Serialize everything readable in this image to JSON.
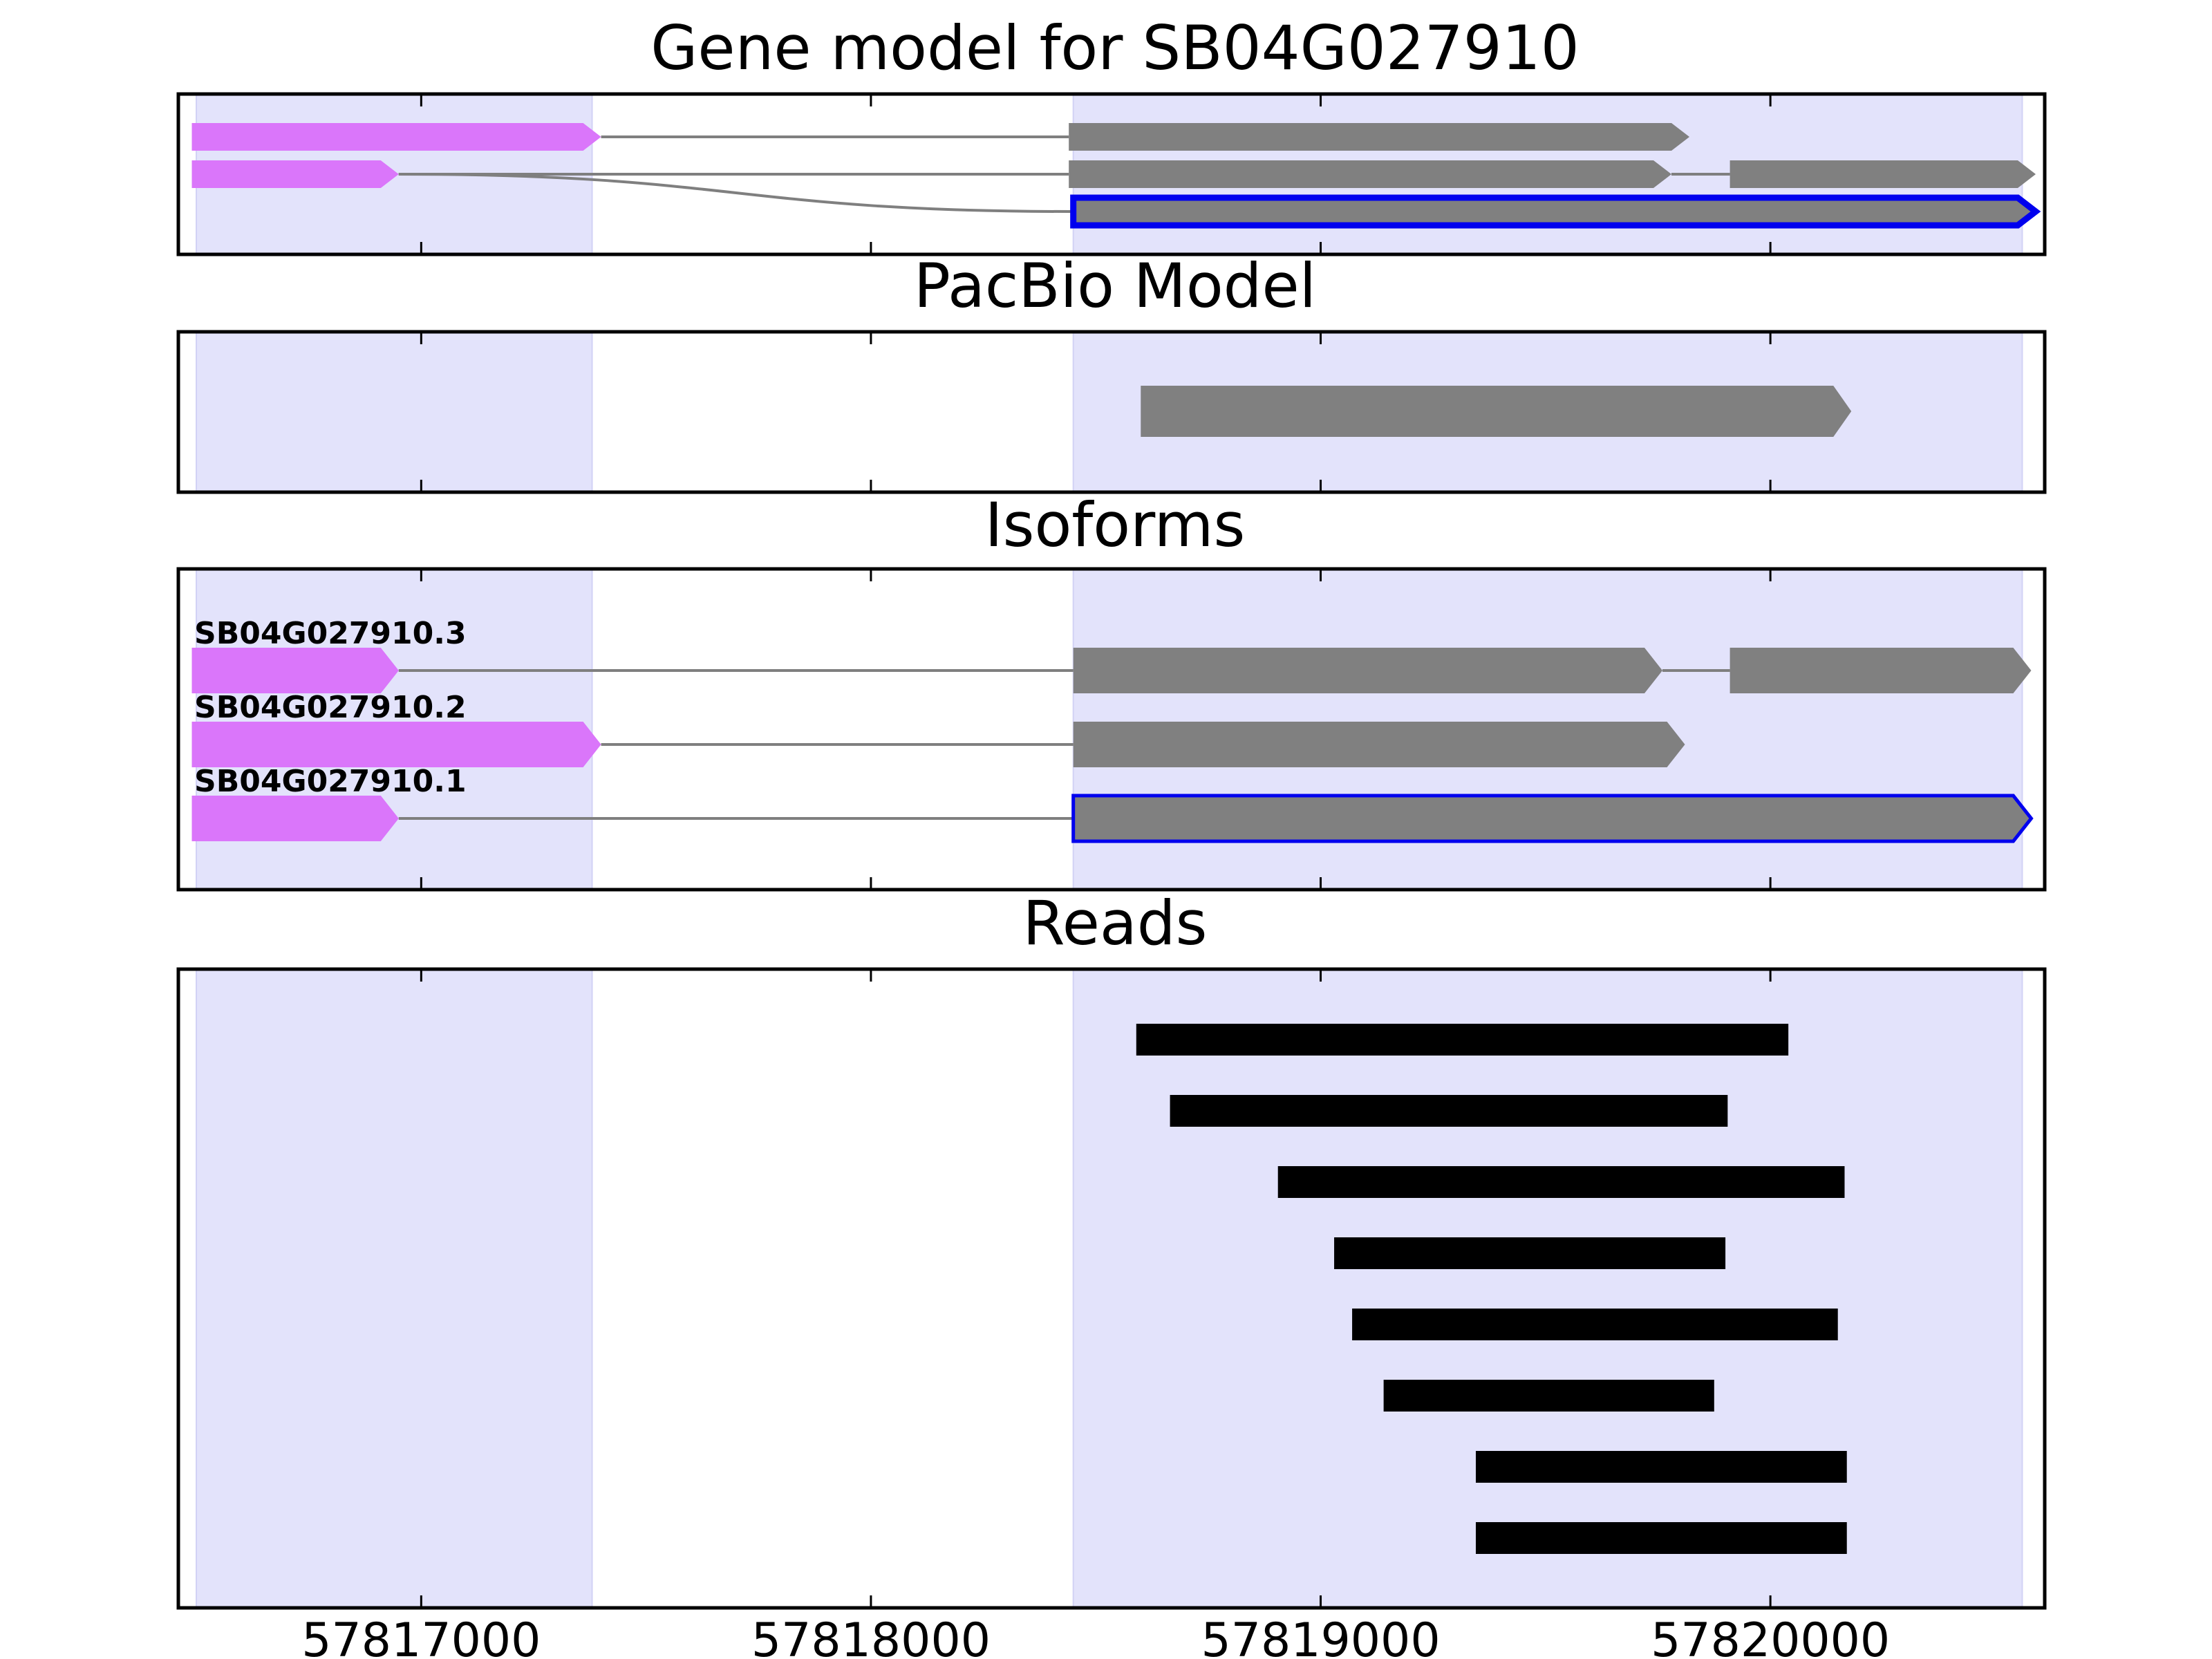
{
  "chart_data": {
    "type": "gene_track",
    "x_ticks": [
      57817000,
      57818000,
      57819000,
      57820000
    ],
    "x_tick_labels": [
      "57817000",
      "57818000",
      "57819000",
      "57820000"
    ],
    "xlim": [
      57816460,
      57820610
    ],
    "exon_shading": [
      [
        57816500,
        57817380
      ],
      [
        57818450,
        57820560
      ]
    ],
    "colors": {
      "utr5": "#DA76FA",
      "cds": "#808080",
      "selected_outline": "#0000EE",
      "shading": "#E3E3FB",
      "intron": "#7F7F7F",
      "read": "#000000"
    },
    "panels": [
      {
        "id": "gene-model",
        "title": "Gene model for SB04G027910",
        "transcripts": [
          {
            "label": "",
            "selected": false,
            "utr": [
              57816490,
              57817400
            ],
            "cds": [
              [
                57818440,
                57819820
              ]
            ]
          },
          {
            "label": "",
            "selected": false,
            "utr": [
              57816490,
              57816950
            ],
            "cds": [
              [
                57818440,
                57819780
              ],
              [
                57819910,
                57820590
              ]
            ]
          },
          {
            "label": "",
            "selected": true,
            "utr": null,
            "cds": [
              [
                57818450,
                57820590
              ]
            ],
            "intron_from": 57816950
          }
        ]
      },
      {
        "id": "pacbio-model",
        "title": "PacBio Model",
        "transcripts": [
          {
            "label": "",
            "selected": false,
            "utr": null,
            "cds": [
              [
                57818600,
                57820180
              ]
            ]
          }
        ]
      },
      {
        "id": "isoforms",
        "title": "Isoforms",
        "transcripts": [
          {
            "label": "SB04G027910.3",
            "selected": false,
            "utr": [
              57816490,
              57816950
            ],
            "cds": [
              [
                57818450,
                57819760
              ],
              [
                57819910,
                57820580
              ]
            ]
          },
          {
            "label": "SB04G027910.2",
            "selected": false,
            "utr": [
              57816490,
              57817400
            ],
            "cds": [
              [
                57818450,
                57819810
              ]
            ]
          },
          {
            "label": "SB04G027910.1",
            "selected": true,
            "utr": [
              57816490,
              57816950
            ],
            "cds": [
              [
                57818450,
                57820580
              ]
            ]
          }
        ]
      },
      {
        "id": "reads",
        "title": "Reads",
        "reads": [
          [
            57818590,
            57820040
          ],
          [
            57818665,
            57819905
          ],
          [
            57818905,
            57820165
          ],
          [
            57819030,
            57819900
          ],
          [
            57819070,
            57820150
          ],
          [
            57819140,
            57819875
          ],
          [
            57819345,
            57820170
          ],
          [
            57819345,
            57820170
          ]
        ]
      }
    ]
  }
}
